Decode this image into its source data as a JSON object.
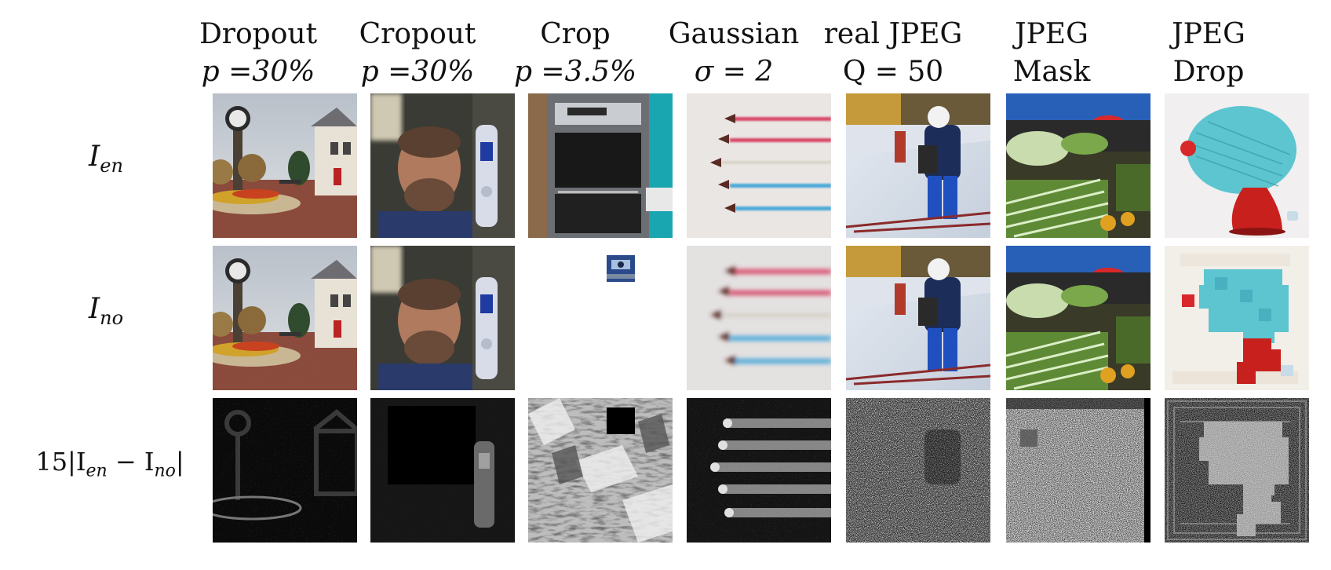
{
  "columns": [
    {
      "line1": "Dropout",
      "line2": "p =30%"
    },
    {
      "line1": "Cropout",
      "line2": "p =30%"
    },
    {
      "line1": "Crop",
      "line2": "p =3.5%"
    },
    {
      "line1": "Gaussian",
      "line2": "σ = 2"
    },
    {
      "line1": "real JPEG",
      "line2": "Q = 50"
    },
    {
      "line1": "JPEG",
      "line2": "Mask"
    },
    {
      "line1": "JPEG",
      "line2": "Drop"
    }
  ],
  "rows": [
    {
      "label": "I_en",
      "label_main": "I",
      "label_sub": "en"
    },
    {
      "label": "I_no",
      "label_main": "I",
      "label_sub": "no"
    },
    {
      "label": "15|I_en − I_no|",
      "label_prefix": "15|I",
      "sub1": "en",
      "mid": " − I",
      "sub2": "no",
      "suffix": "|"
    }
  ],
  "images": [
    [
      "clock-tower-street",
      "man-with-phone",
      "kitchen-oven",
      "jets-smoke-trails",
      "skier-snow",
      "market-vegetables",
      "knit-hat-display"
    ],
    [
      "clock-tower-street-dropout",
      "man-with-phone-cropout",
      "crop-small-patch",
      "jets-blurred",
      "skier-jpeg",
      "market-jpeg-mask",
      "knit-hat-jpeg-drop"
    ],
    [
      "diff-dropout",
      "diff-cropout",
      "diff-crop",
      "diff-gaussian",
      "diff-real-jpeg",
      "diff-jpeg-mask",
      "diff-jpeg-drop"
    ]
  ]
}
